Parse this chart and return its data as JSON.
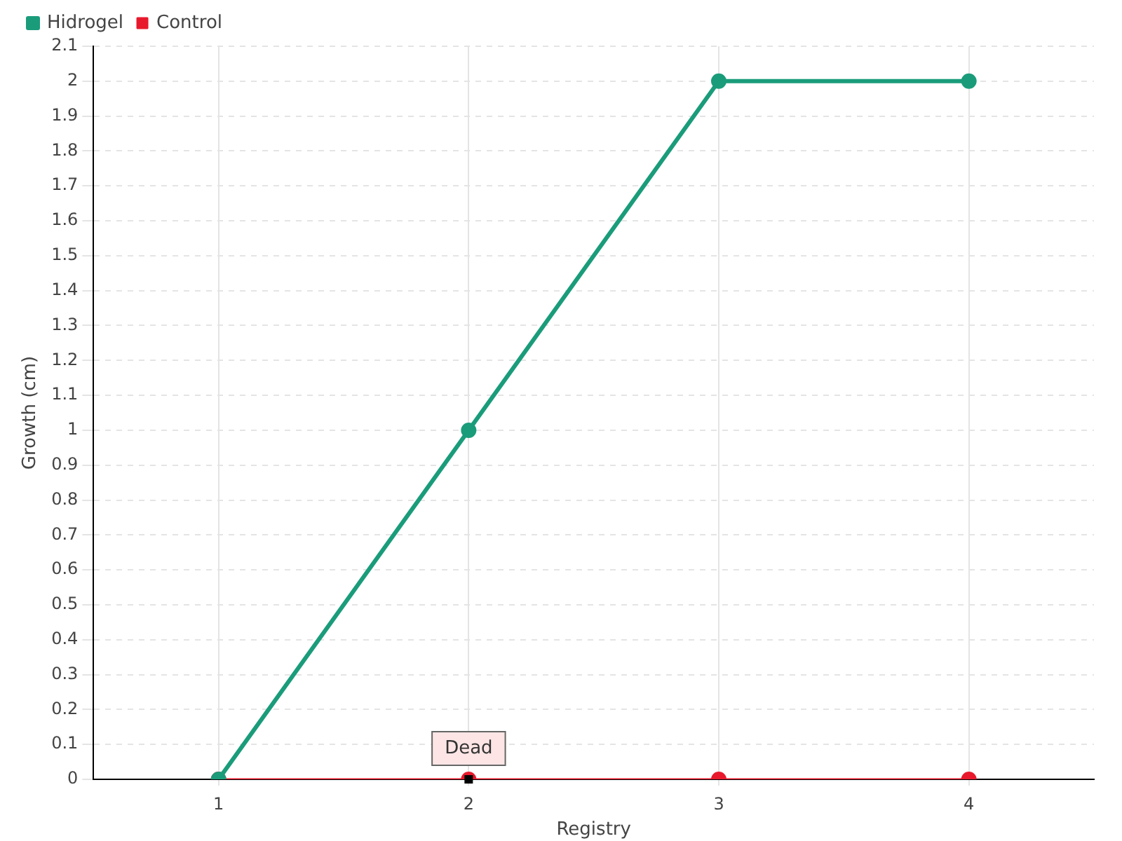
{
  "chart_data": {
    "type": "line",
    "xlabel": "Registry",
    "ylabel": "Growth (cm)",
    "categories": [
      "1",
      "2",
      "3",
      "4"
    ],
    "series": [
      {
        "name": "Hidrogel",
        "color": "#1a9c7a",
        "values": [
          0,
          1,
          2,
          2
        ]
      },
      {
        "name": "Control",
        "color": "#e8192c",
        "values": [
          0,
          0,
          0,
          0
        ]
      }
    ],
    "ylim": [
      0,
      2.1
    ],
    "yticks": [
      0,
      0.1,
      0.2,
      0.3,
      0.4,
      0.5,
      0.6,
      0.7,
      0.8,
      0.9,
      1,
      1.1,
      1.2,
      1.3,
      1.4,
      1.5,
      1.6,
      1.7,
      1.8,
      1.9,
      2,
      2.1
    ],
    "annotations": [
      {
        "text": "Dead",
        "x": "2",
        "y": 0
      }
    ],
    "grid": true,
    "legend": "top left",
    "marker": "circle",
    "line_style": "solid"
  }
}
